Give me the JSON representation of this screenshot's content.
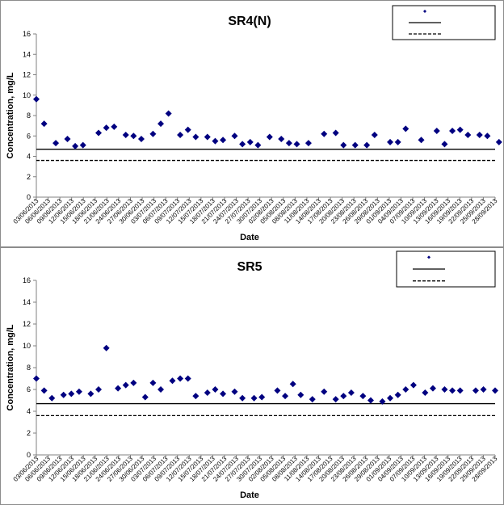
{
  "chart_data": [
    {
      "type": "scatter",
      "title": "SR4(N)",
      "xlabel": "Date",
      "ylabel": "Concentration, mg/L",
      "ylim": [
        0,
        16
      ],
      "yticks": [
        0,
        2,
        4,
        6,
        8,
        10,
        12,
        14,
        16
      ],
      "xticks": [
        "03/06/2013",
        "06/06/2013",
        "09/06/2013",
        "12/06/2013",
        "15/06/2013",
        "18/06/2013",
        "21/06/2013",
        "24/06/2013",
        "27/06/2013",
        "30/06/2013",
        "03/07/2013",
        "06/07/2013",
        "09/07/2013",
        "12/07/2013",
        "15/07/2013",
        "18/07/2013",
        "21/07/2013",
        "24/07/2013",
        "27/07/2013",
        "30/07/2013",
        "02/08/2013",
        "05/08/2013",
        "08/08/2013",
        "11/08/2013",
        "14/08/2013",
        "17/08/2013",
        "20/08/2013",
        "23/08/2013",
        "26/08/2013",
        "29/08/2013",
        "01/09/2013",
        "04/09/2013",
        "07/09/2013",
        "10/09/2013",
        "13/09/2013",
        "16/09/2013",
        "19/09/2013",
        "22/09/2013",
        "25/09/2013",
        "28/09/2013"
      ],
      "xrange_days": [
        0,
        118
      ],
      "series": [
        {
          "name": "",
          "marker": "diamond",
          "color": "#000080",
          "x": [
            0,
            2,
            5,
            8,
            10,
            12,
            16,
            18,
            20,
            23,
            25,
            27,
            30,
            32,
            34,
            37,
            39,
            41,
            44,
            46,
            48,
            51,
            53,
            55,
            57,
            60,
            63,
            65,
            67,
            70,
            74,
            77,
            79,
            82,
            85,
            87,
            91,
            93,
            95,
            99,
            103,
            105,
            107,
            109,
            111,
            114,
            116,
            119
          ],
          "y": [
            9.6,
            7.2,
            5.3,
            5.7,
            5.0,
            5.1,
            6.3,
            6.8,
            6.9,
            6.1,
            6.0,
            5.7,
            6.2,
            7.2,
            8.2,
            6.1,
            6.6,
            5.9,
            5.9,
            5.5,
            5.6,
            6.0,
            5.2,
            5.4,
            5.1,
            5.9,
            5.7,
            5.3,
            5.2,
            5.3,
            6.2,
            6.3,
            5.1,
            5.1,
            5.1,
            6.1,
            5.4,
            5.4,
            6.7,
            5.6,
            6.5,
            5.2,
            6.5,
            6.6,
            6.1,
            6.1,
            6.0,
            5.4
          ]
        }
      ],
      "reference_lines": [
        {
          "name": "",
          "y": 4.7,
          "style": "solid",
          "color": "#000000"
        },
        {
          "name": "",
          "y": 3.6,
          "style": "dashed",
          "color": "#000000"
        }
      ],
      "legend_position": "top-right"
    },
    {
      "type": "scatter",
      "title": "SR5",
      "xlabel": "Date",
      "ylabel": "Concentration, mg/L",
      "ylim": [
        0,
        16
      ],
      "yticks": [
        0,
        2,
        4,
        6,
        8,
        10,
        12,
        14,
        16
      ],
      "xticks": [
        "03/06/2013",
        "06/06/2013",
        "09/06/2013",
        "12/06/2013",
        "15/06/2013",
        "18/06/2013",
        "21/06/2013",
        "24/06/2013",
        "27/06/2013",
        "30/06/2013",
        "03/07/2013",
        "06/07/2013",
        "09/07/2013",
        "12/07/2013",
        "15/07/2013",
        "18/07/2013",
        "21/07/2013",
        "24/07/2013",
        "27/07/2013",
        "30/07/2013",
        "02/08/2013",
        "05/08/2013",
        "08/08/2013",
        "11/08/2013",
        "14/08/2013",
        "17/08/2013",
        "20/08/2013",
        "23/08/2013",
        "26/08/2013",
        "29/08/2013",
        "01/09/2013",
        "04/09/2013",
        "07/09/2013",
        "10/09/2013",
        "13/09/2013",
        "16/09/2013",
        "19/09/2013",
        "22/09/2013",
        "25/09/2013",
        "28/09/2013"
      ],
      "xrange_days": [
        0,
        118
      ],
      "series": [
        {
          "name": "",
          "marker": "diamond",
          "color": "#000080",
          "x": [
            0,
            2,
            4,
            7,
            9,
            11,
            14,
            16,
            18,
            21,
            23,
            25,
            28,
            30,
            32,
            35,
            37,
            39,
            41,
            44,
            46,
            48,
            51,
            53,
            56,
            58,
            62,
            64,
            66,
            68,
            71,
            74,
            77,
            79,
            81,
            84,
            86,
            89,
            91,
            93,
            95,
            97,
            100,
            102,
            105,
            107,
            109,
            113,
            115,
            118
          ],
          "y": [
            7.0,
            5.9,
            5.2,
            5.5,
            5.6,
            5.8,
            5.6,
            6.0,
            9.8,
            6.1,
            6.4,
            6.6,
            5.3,
            6.6,
            6.0,
            6.8,
            7.0,
            7.0,
            5.4,
            5.7,
            6.0,
            5.6,
            5.8,
            5.2,
            5.2,
            5.3,
            5.9,
            5.4,
            6.5,
            5.5,
            5.1,
            5.8,
            5.1,
            5.4,
            5.7,
            5.4,
            5.0,
            4.9,
            5.2,
            5.5,
            6.0,
            6.4,
            5.7,
            6.1,
            6.0,
            5.9,
            5.9,
            5.9,
            6.0,
            5.9
          ]
        }
      ],
      "reference_lines": [
        {
          "name": "",
          "y": 4.7,
          "style": "solid",
          "color": "#000000"
        },
        {
          "name": "",
          "y": 3.6,
          "style": "dashed",
          "color": "#000000"
        }
      ],
      "legend_position": "top-right"
    }
  ]
}
